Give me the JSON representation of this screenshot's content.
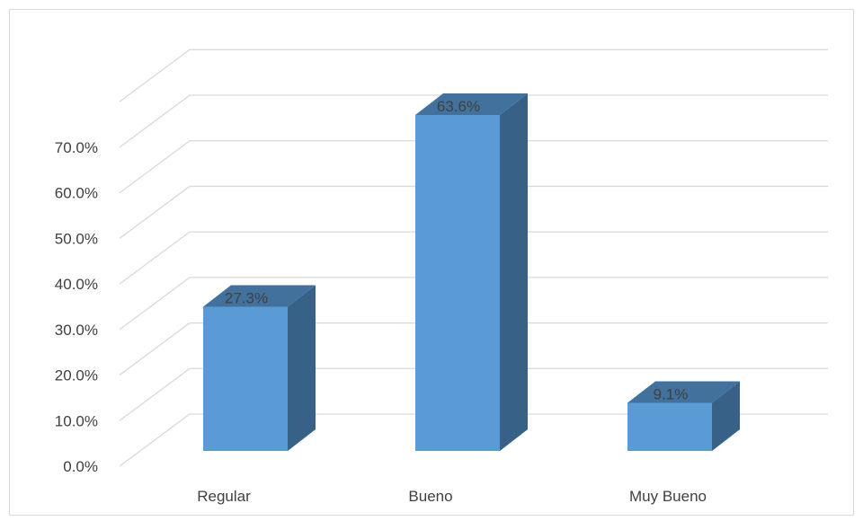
{
  "chart_data": {
    "type": "bar",
    "style": "3d-column",
    "title": "",
    "xlabel": "",
    "ylabel": "",
    "categories": [
      "Regular",
      "Bueno",
      "Muy Bueno"
    ],
    "series": [
      {
        "values": [
          27.3,
          63.6,
          9.1
        ],
        "data_labels": [
          "27.3%",
          "63.6%",
          "9.1%"
        ]
      }
    ],
    "ylim": [
      0,
      70
    ],
    "y_ticks": [
      0,
      10,
      20,
      30,
      40,
      50,
      60,
      70
    ],
    "y_tick_labels": [
      "0.0%",
      "10.0%",
      "20.0%",
      "30.0%",
      "40.0%",
      "50.0%",
      "60.0%",
      "70.0%"
    ],
    "grid": true,
    "legend": "none",
    "colors": {
      "bar_front": "#5b9bd5",
      "bar_top": "#41719c",
      "bar_side": "#376186",
      "gridline": "#d9d9d9",
      "text": "#404040"
    }
  }
}
